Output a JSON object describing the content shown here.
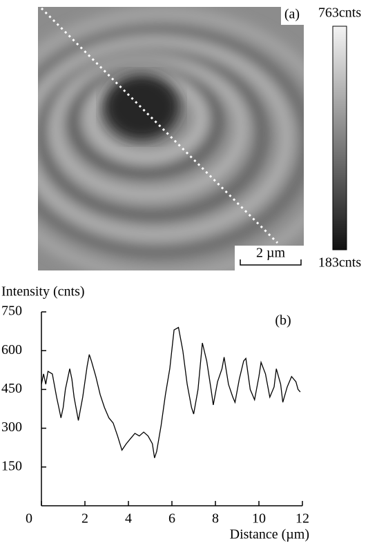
{
  "panel_a": {
    "label": "(a)",
    "scale_bar": "2 µm",
    "colorbar": {
      "max": {
        "value": 763,
        "label": "763cnts"
      },
      "min": {
        "value": 183,
        "label": "183cnts"
      }
    }
  },
  "chart_data": {
    "type": "line",
    "label": "(b)",
    "y_label": "Intensity (cnts)",
    "x_label": "Distance (µm)",
    "color": "#000000",
    "x": [
      0,
      0.1,
      0.2,
      0.3,
      0.5,
      0.7,
      0.8,
      0.9,
      1.0,
      1.1,
      1.3,
      1.4,
      1.5,
      1.7,
      1.9,
      2.1,
      2.2,
      2.3,
      2.5,
      2.7,
      2.9,
      3.1,
      3.3,
      3.5,
      3.7,
      3.9,
      4.1,
      4.3,
      4.5,
      4.7,
      4.9,
      5.1,
      5.2,
      5.3,
      5.5,
      5.7,
      5.9,
      6.1,
      6.3,
      6.5,
      6.7,
      6.9,
      7.0,
      7.2,
      7.4,
      7.6,
      7.8,
      7.9,
      8.1,
      8.3,
      8.4,
      8.6,
      8.8,
      8.9,
      9.1,
      9.3,
      9.4,
      9.6,
      9.8,
      10.0,
      10.1,
      10.3,
      10.5,
      10.7,
      10.8,
      11.0,
      11.1,
      11.3,
      11.5,
      11.7,
      11.8,
      11.9
    ],
    "values": [
      470,
      510,
      470,
      520,
      510,
      420,
      380,
      340,
      380,
      450,
      530,
      490,
      420,
      330,
      420,
      540,
      585,
      560,
      500,
      430,
      380,
      340,
      320,
      270,
      215,
      240,
      260,
      280,
      270,
      285,
      270,
      240,
      185,
      210,
      310,
      430,
      530,
      680,
      690,
      600,
      470,
      380,
      355,
      450,
      630,
      560,
      450,
      390,
      480,
      530,
      575,
      470,
      420,
      400,
      490,
      560,
      570,
      450,
      410,
      500,
      555,
      510,
      420,
      460,
      530,
      470,
      400,
      460,
      500,
      480,
      450,
      440
    ],
    "xlim": [
      0,
      12
    ],
    "ylim": [
      0,
      750
    ],
    "xticks": [
      0,
      2,
      4,
      6,
      8,
      10,
      12
    ],
    "yticks": [
      150,
      300,
      450,
      600,
      750
    ]
  }
}
